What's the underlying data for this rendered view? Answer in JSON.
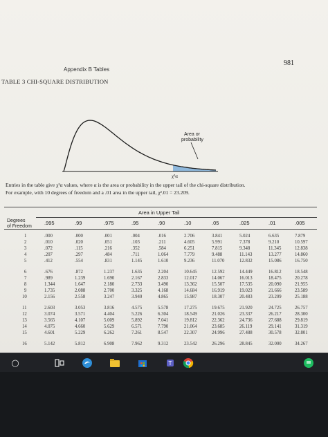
{
  "page": {
    "page_number": "981",
    "header": "Appendix B   Tables",
    "table_title": "TABLE 3   CHI-SQUARE DISTRIBUTION",
    "figure_label": "Area or\nprobability",
    "axis_label": "χ²α",
    "caption_line1": "Entries in the table give χ²α values, where α is the area or probability in the upper tail of the chi-square distribution.",
    "caption_line2": "For example, with 10 degrees of freedom and a .01 area in the upper tail, χ².01 = 23.209.",
    "area_header": "Area in Upper Tail",
    "df_header_line1": "Degrees",
    "df_header_line2": "of Freedom"
  },
  "table": {
    "columns": [
      ".995",
      ".99",
      ".975",
      ".95",
      ".90",
      ".10",
      ".05",
      ".025",
      ".01",
      ".005"
    ],
    "rows": [
      {
        "df": "1",
        "values": [
          ".000",
          ".000",
          ".001",
          ".004",
          ".016",
          "2.706",
          "3.841",
          "5.024",
          "6.635",
          "7.879"
        ]
      },
      {
        "df": "2",
        "values": [
          ".010",
          ".020",
          ".051",
          ".103",
          ".211",
          "4.605",
          "5.991",
          "7.378",
          "9.210",
          "10.597"
        ]
      },
      {
        "df": "3",
        "values": [
          ".072",
          ".115",
          ".216",
          ".352",
          ".584",
          "6.251",
          "7.815",
          "9.348",
          "11.345",
          "12.838"
        ]
      },
      {
        "df": "4",
        "values": [
          ".207",
          ".297",
          ".484",
          ".711",
          "1.064",
          "7.779",
          "9.488",
          "11.143",
          "13.277",
          "14.860"
        ]
      },
      {
        "df": "5",
        "values": [
          ".412",
          ".554",
          ".831",
          "1.145",
          "1.610",
          "9.236",
          "11.070",
          "12.832",
          "15.086",
          "16.750"
        ]
      },
      {
        "df": "6",
        "values": [
          ".676",
          ".872",
          "1.237",
          "1.635",
          "2.204",
          "10.645",
          "12.592",
          "14.449",
          "16.812",
          "18.548"
        ]
      },
      {
        "df": "7",
        "values": [
          ".989",
          "1.239",
          "1.690",
          "2.167",
          "2.833",
          "12.017",
          "14.067",
          "16.013",
          "18.475",
          "20.278"
        ]
      },
      {
        "df": "8",
        "values": [
          "1.344",
          "1.647",
          "2.180",
          "2.733",
          "3.490",
          "13.362",
          "15.507",
          "17.535",
          "20.090",
          "21.955"
        ]
      },
      {
        "df": "9",
        "values": [
          "1.735",
          "2.088",
          "2.700",
          "3.325",
          "4.168",
          "14.684",
          "16.919",
          "19.023",
          "21.666",
          "23.589"
        ]
      },
      {
        "df": "10",
        "values": [
          "2.156",
          "2.558",
          "3.247",
          "3.940",
          "4.865",
          "15.987",
          "18.307",
          "20.483",
          "23.209",
          "25.188"
        ]
      },
      {
        "df": "11",
        "values": [
          "2.603",
          "3.053",
          "3.816",
          "4.575",
          "5.578",
          "17.275",
          "19.675",
          "21.920",
          "24.725",
          "26.757"
        ]
      },
      {
        "df": "12",
        "values": [
          "3.074",
          "3.571",
          "4.404",
          "5.226",
          "6.304",
          "18.549",
          "21.026",
          "23.337",
          "26.217",
          "28.300"
        ]
      },
      {
        "df": "13",
        "values": [
          "3.565",
          "4.107",
          "5.009",
          "5.892",
          "7.041",
          "19.812",
          "22.362",
          "24.736",
          "27.688",
          "29.819"
        ]
      },
      {
        "df": "14",
        "values": [
          "4.075",
          "4.660",
          "5.629",
          "6.571",
          "7.790",
          "21.064",
          "23.685",
          "26.119",
          "29.141",
          "31.319"
        ]
      },
      {
        "df": "15",
        "values": [
          "4.601",
          "5.229",
          "6.262",
          "7.261",
          "8.547",
          "22.307",
          "24.996",
          "27.488",
          "30.578",
          "32.801"
        ]
      },
      {
        "df": "16",
        "values": [
          "5.142",
          "5.812",
          "6.908",
          "7.962",
          "9.312",
          "23.542",
          "26.296",
          "28.845",
          "32.000",
          "34.267"
        ]
      }
    ]
  },
  "taskbar": {
    "items": [
      {
        "name": "start-icon",
        "glyph": "○"
      },
      {
        "name": "task-view-icon",
        "glyph": "⊟"
      },
      {
        "name": "edge-icon",
        "glyph": ""
      },
      {
        "name": "file-explorer-icon",
        "glyph": ""
      },
      {
        "name": "store-icon",
        "glyph": ""
      },
      {
        "name": "mail-icon",
        "glyph": "✉"
      },
      {
        "name": "teams-icon",
        "glyph": ""
      },
      {
        "name": "chrome-icon",
        "glyph": ""
      },
      {
        "name": "chat-icon",
        "glyph": ""
      }
    ],
    "colors": {
      "edge": "#2f8fd8",
      "explorer": "#f1c232",
      "store": "#1f6fcf",
      "mail": "#2f7fd0",
      "teams": "#5c5fc4",
      "chrome_red": "#db4437",
      "chrome_yellow": "#f4b400",
      "chrome_green": "#0f9d58",
      "chat": "#1ebc60"
    }
  },
  "figure": {
    "shade_color": "#8fb8dc",
    "curve_color": "#1c1c1c"
  }
}
